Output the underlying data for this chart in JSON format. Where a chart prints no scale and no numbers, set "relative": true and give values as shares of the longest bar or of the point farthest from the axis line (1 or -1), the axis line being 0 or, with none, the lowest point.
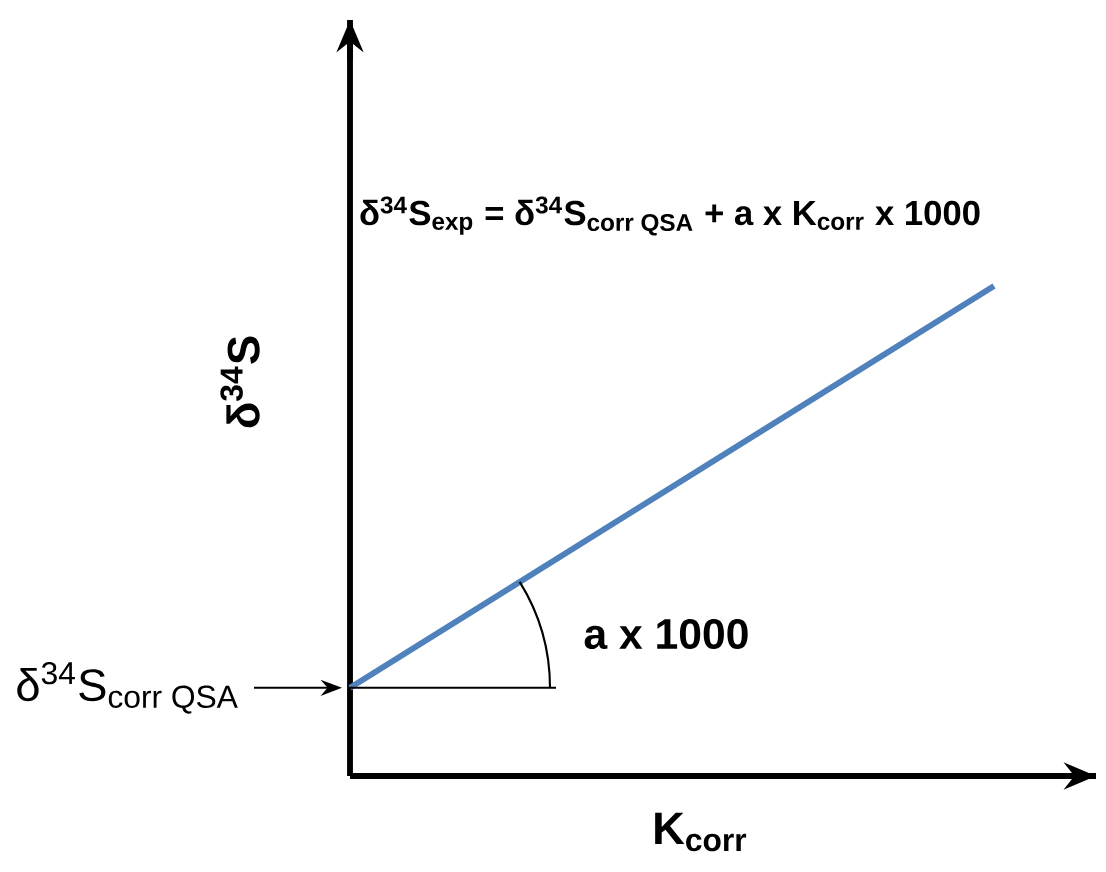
{
  "chart_data": {
    "type": "line",
    "relative": true,
    "categories": [
      null,
      null
    ],
    "series": [
      {
        "color": "#4f81bd",
        "values": [
          0.18,
          1
        ]
      }
    ],
    "xlabel": "K$_{corr}$",
    "ylabel": "δ$^{34}$S",
    "annotations": [
      "\\textbf{δ\\textsuperscript{34}S\\textsubscript{exp} = δ\\textsuperscript{34}S\\textsubscript{corr QSA} + a x K\\textsubscript{corr} x 1000}",
      "**a x 1000**",
      "\\textrm{δ\\textsuperscript{34}S\\textsubscript{corr QSA}}"
    ]
  }
}
